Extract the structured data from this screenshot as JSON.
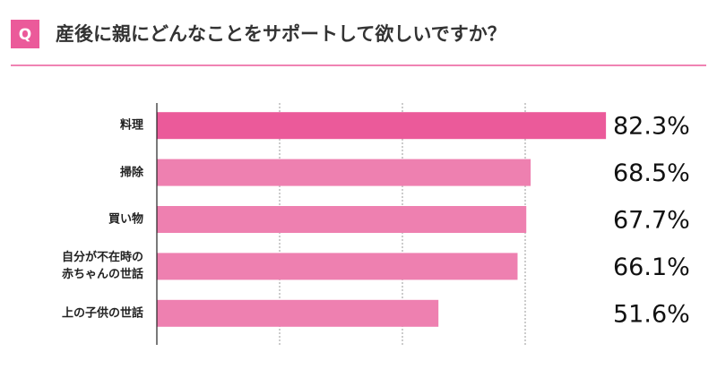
{
  "badge": "Q",
  "chart_data": {
    "type": "hbar",
    "title": "産後に親にどんなことをサポートして欲しいですか？",
    "categories": [
      "料理",
      "掃除",
      "買い物",
      "自分が不在時の\n赤ちゃんの世話",
      "上の子供の世話"
    ],
    "values": [
      82.3,
      68.5,
      67.7,
      66.1,
      51.6
    ],
    "value_labels": [
      "82.3%",
      "68.5%",
      "67.7%",
      "66.1%",
      "51.6%"
    ],
    "colors": [
      "#eb5a9a",
      "#ee80b0",
      "#ee80b0",
      "#ee80b0",
      "#ee80b0"
    ],
    "xlim": [
      0,
      90
    ],
    "xticks": [
      0,
      22.5,
      45,
      67.5,
      90
    ],
    "grid": true
  }
}
